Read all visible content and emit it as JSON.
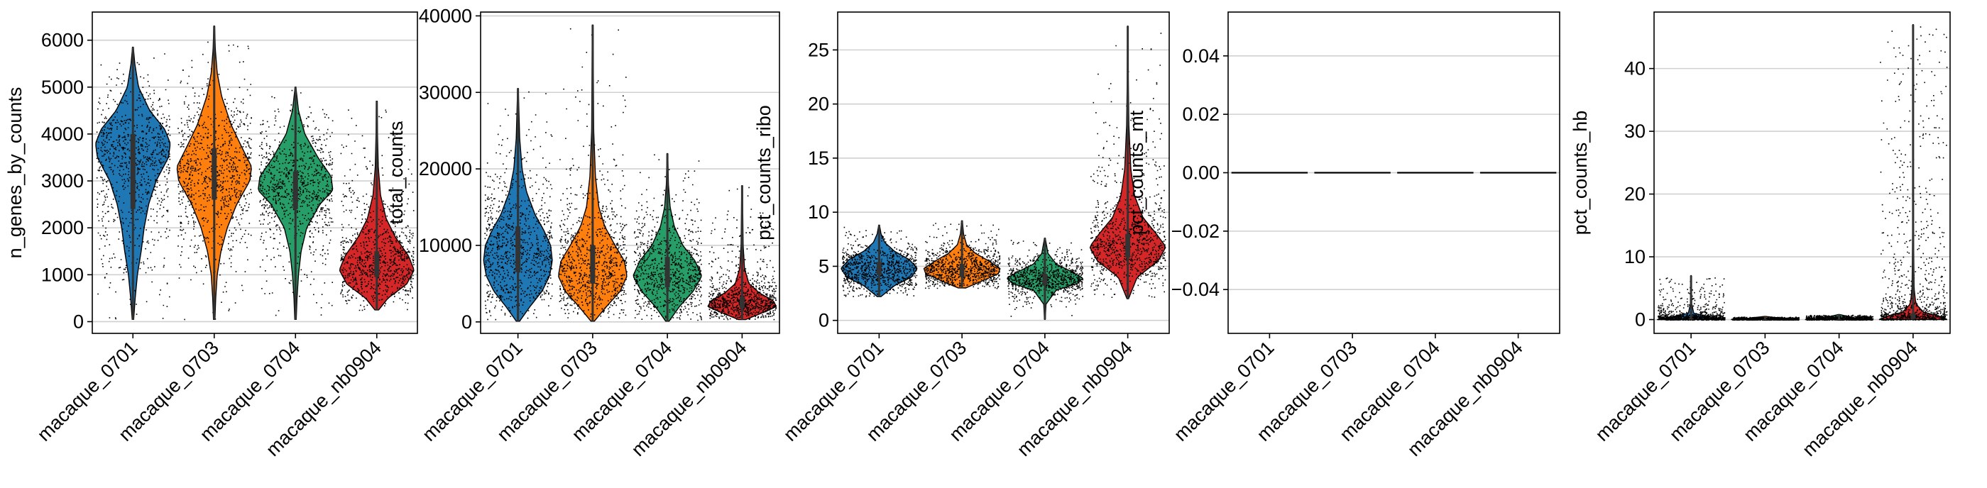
{
  "chart_data": [
    {
      "type": "violin",
      "ylabel": "n_genes_by_counts",
      "categories": [
        "macaque_0701",
        "macaque_0703",
        "macaque_0704",
        "macaque_nb0904"
      ],
      "ylim": [
        -250,
        6600
      ],
      "yticks": [
        0,
        1000,
        2000,
        3000,
        4000,
        5000,
        6000
      ],
      "grid": true,
      "series": [
        {
          "category": "macaque_0701",
          "color": "#1f77b4",
          "min": 50,
          "q1": 2400,
          "median": 3500,
          "q3": 4000,
          "max": 5850,
          "mode": 3650,
          "density": [
            [
              50,
              0.02
            ],
            [
              500,
              0.06
            ],
            [
              1000,
              0.12
            ],
            [
              1500,
              0.22
            ],
            [
              2000,
              0.3
            ],
            [
              2500,
              0.42
            ],
            [
              3000,
              0.62
            ],
            [
              3500,
              0.95
            ],
            [
              3800,
              1.0
            ],
            [
              4100,
              0.85
            ],
            [
              4500,
              0.45
            ],
            [
              5000,
              0.15
            ],
            [
              5500,
              0.05
            ],
            [
              5850,
              0.01
            ]
          ]
        },
        {
          "category": "macaque_0703",
          "color": "#ff7f0e",
          "min": 50,
          "q1": 2600,
          "median": 3150,
          "q3": 3700,
          "max": 6300,
          "mode": 3100,
          "density": [
            [
              50,
              0.02
            ],
            [
              500,
              0.04
            ],
            [
              1000,
              0.08
            ],
            [
              1500,
              0.18
            ],
            [
              2000,
              0.35
            ],
            [
              2500,
              0.6
            ],
            [
              3000,
              0.95
            ],
            [
              3300,
              1.0
            ],
            [
              3700,
              0.75
            ],
            [
              4200,
              0.45
            ],
            [
              4800,
              0.2
            ],
            [
              5300,
              0.08
            ],
            [
              5800,
              0.03
            ],
            [
              6300,
              0.01
            ]
          ]
        },
        {
          "category": "macaque_0704",
          "color": "#279e68",
          "min": 50,
          "q1": 2400,
          "median": 2850,
          "q3": 3200,
          "max": 5000,
          "mode": 2900,
          "density": [
            [
              50,
              0.02
            ],
            [
              500,
              0.04
            ],
            [
              1000,
              0.08
            ],
            [
              1500,
              0.15
            ],
            [
              2000,
              0.3
            ],
            [
              2500,
              0.65
            ],
            [
              2800,
              1.0
            ],
            [
              3100,
              0.95
            ],
            [
              3500,
              0.6
            ],
            [
              4000,
              0.25
            ],
            [
              4500,
              0.08
            ],
            [
              5000,
              0.01
            ]
          ]
        },
        {
          "category": "macaque_nb0904",
          "color": "#d62728",
          "min": 250,
          "q1": 950,
          "median": 1200,
          "q3": 1500,
          "max": 4700,
          "mode": 1150,
          "density": [
            [
              250,
              0.05
            ],
            [
              500,
              0.3
            ],
            [
              800,
              0.8
            ],
            [
              1100,
              1.0
            ],
            [
              1400,
              0.85
            ],
            [
              1800,
              0.5
            ],
            [
              2200,
              0.25
            ],
            [
              2700,
              0.1
            ],
            [
              3300,
              0.04
            ],
            [
              4000,
              0.02
            ],
            [
              4700,
              0.01
            ]
          ]
        }
      ]
    },
    {
      "type": "violin",
      "ylabel": "total_counts",
      "categories": [
        "macaque_0701",
        "macaque_0703",
        "macaque_0704",
        "macaque_nb0904"
      ],
      "ylim": [
        -1500,
        40500
      ],
      "yticks": [
        0,
        10000,
        20000,
        30000,
        40000
      ],
      "grid": true,
      "series": [
        {
          "category": "macaque_0701",
          "color": "#1f77b4",
          "min": 100,
          "q1": 6500,
          "median": 9500,
          "q3": 12500,
          "max": 30500,
          "mode": 9000,
          "density": [
            [
              100,
              0.05
            ],
            [
              2000,
              0.35
            ],
            [
              4000,
              0.7
            ],
            [
              6000,
              0.92
            ],
            [
              8000,
              1.0
            ],
            [
              10000,
              0.95
            ],
            [
              12000,
              0.75
            ],
            [
              14000,
              0.5
            ],
            [
              17000,
              0.25
            ],
            [
              20000,
              0.12
            ],
            [
              24000,
              0.05
            ],
            [
              30500,
              0.01
            ]
          ]
        },
        {
          "category": "macaque_0703",
          "color": "#ff7f0e",
          "min": 100,
          "q1": 5000,
          "median": 7500,
          "q3": 10000,
          "max": 38800,
          "mode": 7000,
          "density": [
            [
              100,
              0.05
            ],
            [
              2000,
              0.4
            ],
            [
              4000,
              0.8
            ],
            [
              6000,
              1.0
            ],
            [
              8000,
              0.92
            ],
            [
              10000,
              0.65
            ],
            [
              12500,
              0.35
            ],
            [
              15000,
              0.18
            ],
            [
              19000,
              0.08
            ],
            [
              25000,
              0.03
            ],
            [
              38800,
              0.01
            ]
          ]
        },
        {
          "category": "macaque_0704",
          "color": "#279e68",
          "min": 100,
          "q1": 4500,
          "median": 6500,
          "q3": 8500,
          "max": 22000,
          "mode": 6500,
          "density": [
            [
              100,
              0.05
            ],
            [
              2000,
              0.35
            ],
            [
              4000,
              0.75
            ],
            [
              6000,
              1.0
            ],
            [
              8000,
              0.8
            ],
            [
              10000,
              0.45
            ],
            [
              12500,
              0.2
            ],
            [
              15000,
              0.08
            ],
            [
              18000,
              0.03
            ],
            [
              22000,
              0.01
            ]
          ]
        },
        {
          "category": "macaque_nb0904",
          "color": "#d62728",
          "min": 300,
          "q1": 1800,
          "median": 2500,
          "q3": 3300,
          "max": 17800,
          "mode": 2500,
          "density": [
            [
              300,
              0.1
            ],
            [
              1200,
              0.6
            ],
            [
              2000,
              1.0
            ],
            [
              2800,
              0.9
            ],
            [
              3800,
              0.5
            ],
            [
              5000,
              0.2
            ],
            [
              7000,
              0.07
            ],
            [
              10000,
              0.03
            ],
            [
              17800,
              0.01
            ]
          ]
        }
      ]
    },
    {
      "type": "violin",
      "ylabel": "pct_counts_ribo",
      "categories": [
        "macaque_0701",
        "macaque_0703",
        "macaque_0704",
        "macaque_nb0904"
      ],
      "ylim": [
        -1.2,
        28.5
      ],
      "yticks": [
        0,
        5,
        10,
        15,
        20,
        25
      ],
      "grid": true,
      "series": [
        {
          "category": "macaque_0701",
          "color": "#1f77b4",
          "min": 2.2,
          "q1": 4.2,
          "median": 4.8,
          "q3": 5.4,
          "max": 8.8,
          "mode": 4.8,
          "density": [
            [
              2.2,
              0.05
            ],
            [
              3.2,
              0.4
            ],
            [
              4.0,
              0.85
            ],
            [
              4.8,
              1.0
            ],
            [
              5.6,
              0.8
            ],
            [
              6.4,
              0.4
            ],
            [
              7.2,
              0.15
            ],
            [
              8.0,
              0.05
            ],
            [
              8.8,
              0.01
            ]
          ]
        },
        {
          "category": "macaque_0703",
          "color": "#ff7f0e",
          "min": 3.0,
          "q1": 4.0,
          "median": 4.6,
          "q3": 5.2,
          "max": 9.2,
          "mode": 4.6,
          "density": [
            [
              3.0,
              0.1
            ],
            [
              3.6,
              0.5
            ],
            [
              4.3,
              0.95
            ],
            [
              4.8,
              1.0
            ],
            [
              5.5,
              0.7
            ],
            [
              6.2,
              0.35
            ],
            [
              7.0,
              0.12
            ],
            [
              8.0,
              0.04
            ],
            [
              9.2,
              0.01
            ]
          ]
        },
        {
          "category": "macaque_0704",
          "color": "#279e68",
          "min": 0.1,
          "q1": 3.3,
          "median": 3.8,
          "q3": 4.3,
          "max": 7.6,
          "mode": 3.8,
          "density": [
            [
              0.1,
              0.01
            ],
            [
              1.5,
              0.03
            ],
            [
              2.8,
              0.3
            ],
            [
              3.4,
              0.85
            ],
            [
              3.9,
              1.0
            ],
            [
              4.5,
              0.7
            ],
            [
              5.2,
              0.3
            ],
            [
              6.2,
              0.08
            ],
            [
              7.6,
              0.01
            ]
          ]
        },
        {
          "category": "macaque_nb0904",
          "color": "#d62728",
          "min": 2.0,
          "q1": 5.8,
          "median": 6.8,
          "q3": 8.0,
          "max": 27.2,
          "mode": 6.8,
          "density": [
            [
              2.0,
              0.02
            ],
            [
              4.0,
              0.25
            ],
            [
              5.5,
              0.8
            ],
            [
              6.8,
              1.0
            ],
            [
              8.0,
              0.75
            ],
            [
              9.5,
              0.4
            ],
            [
              11.5,
              0.18
            ],
            [
              14.0,
              0.08
            ],
            [
              18.0,
              0.03
            ],
            [
              22.0,
              0.015
            ],
            [
              27.2,
              0.005
            ]
          ]
        }
      ]
    },
    {
      "type": "violin",
      "ylabel": "pct_counts_mt",
      "categories": [
        "macaque_0701",
        "macaque_0703",
        "macaque_0704",
        "macaque_nb0904"
      ],
      "ylim": [
        -0.055,
        0.055
      ],
      "yticks": [
        -0.04,
        -0.02,
        0.0,
        0.02,
        0.04
      ],
      "ytick_labels": [
        "−0.04",
        "−0.02",
        "0.00",
        "0.02",
        "0.04"
      ],
      "grid": true,
      "series": [
        {
          "category": "macaque_0701",
          "color": "#1f77b4",
          "min": 0,
          "q1": 0,
          "median": 0,
          "q3": 0,
          "max": 0,
          "mode": 0,
          "density": []
        },
        {
          "category": "macaque_0703",
          "color": "#ff7f0e",
          "min": 0,
          "q1": 0,
          "median": 0,
          "q3": 0,
          "max": 0,
          "mode": 0,
          "density": []
        },
        {
          "category": "macaque_0704",
          "color": "#279e68",
          "min": 0,
          "q1": 0,
          "median": 0,
          "q3": 0,
          "max": 0,
          "mode": 0,
          "density": []
        },
        {
          "category": "macaque_nb0904",
          "color": "#d62728",
          "min": 0,
          "q1": 0,
          "median": 0,
          "q3": 0,
          "max": 0,
          "mode": 0,
          "density": []
        }
      ]
    },
    {
      "type": "violin",
      "ylabel": "pct_counts_hb",
      "categories": [
        "macaque_0701",
        "macaque_0703",
        "macaque_0704",
        "macaque_nb0904"
      ],
      "ylim": [
        -2.2,
        49
      ],
      "yticks": [
        0,
        10,
        20,
        30,
        40
      ],
      "grid": true,
      "series": [
        {
          "category": "macaque_0701",
          "color": "#1f77b4",
          "min": 0,
          "q1": 0,
          "median": 0.05,
          "q3": 0.2,
          "max": 7.0,
          "mode": 0.05,
          "density": [
            [
              0,
              1.0
            ],
            [
              0.4,
              0.6
            ],
            [
              1.0,
              0.08
            ],
            [
              2.5,
              0.02
            ],
            [
              7.0,
              0.005
            ]
          ]
        },
        {
          "category": "macaque_0703",
          "color": "#ff7f0e",
          "min": 0,
          "q1": 0,
          "median": 0,
          "q3": 0.05,
          "max": 0.5,
          "mode": 0,
          "density": [
            [
              0,
              1.0
            ],
            [
              0.2,
              0.5
            ],
            [
              0.5,
              0.02
            ]
          ]
        },
        {
          "category": "macaque_0704",
          "color": "#279e68",
          "min": 0,
          "q1": 0,
          "median": 0,
          "q3": 0.05,
          "max": 0.8,
          "mode": 0,
          "density": [
            [
              0,
              1.0
            ],
            [
              0.2,
              0.5
            ],
            [
              0.8,
              0.02
            ]
          ]
        },
        {
          "category": "macaque_nb0904",
          "color": "#d62728",
          "min": 0,
          "q1": 0.1,
          "median": 0.3,
          "q3": 1.0,
          "max": 47.0,
          "mode": 0.3,
          "density": [
            [
              0,
              1.0
            ],
            [
              0.5,
              0.8
            ],
            [
              1.2,
              0.3
            ],
            [
              2.5,
              0.08
            ],
            [
              5.0,
              0.03
            ],
            [
              15.0,
              0.012
            ],
            [
              30.0,
              0.006
            ],
            [
              47.0,
              0.003
            ]
          ]
        }
      ]
    }
  ]
}
